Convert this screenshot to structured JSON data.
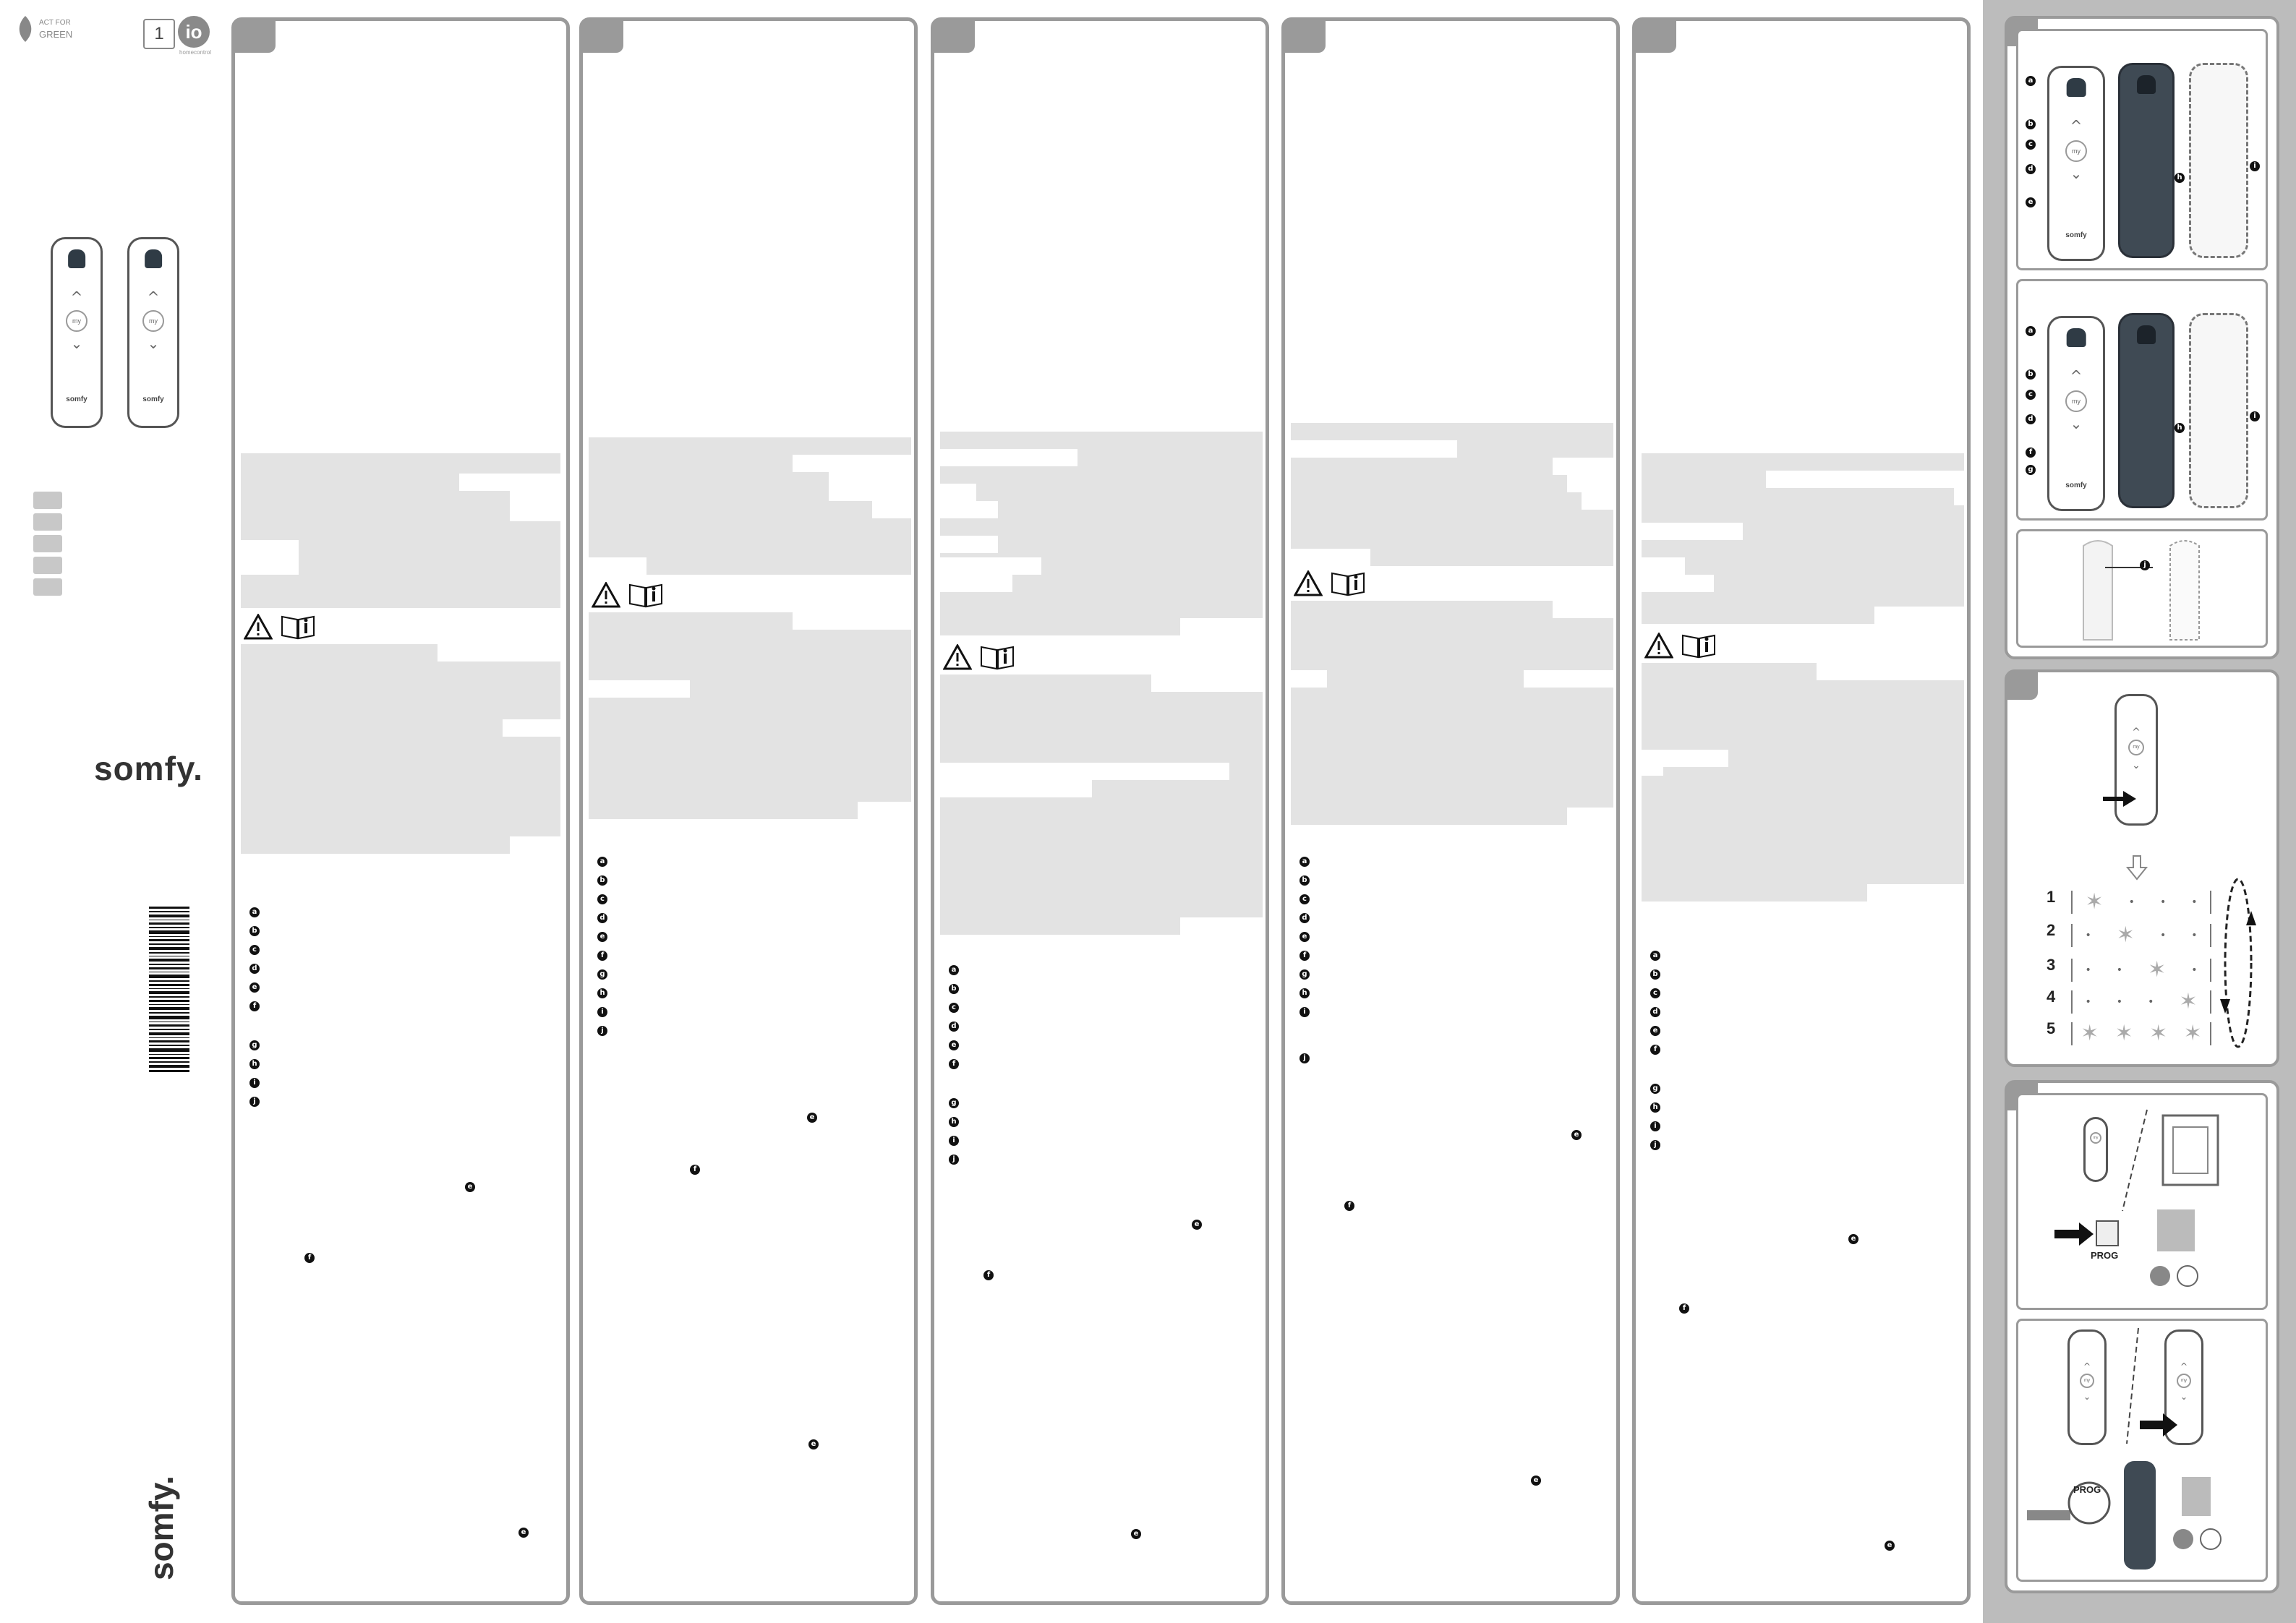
{
  "cover": {
    "eco_label_top": "ACT FOR",
    "eco_label_bottom": "GREEN",
    "channel_count": "1",
    "io_badge": "io",
    "io_sub": "homecontrol",
    "brand_horizontal": "somfy.",
    "brand_vertical": "somfy."
  },
  "remote_labels": {
    "my": "my",
    "brand": "somfy",
    "prog": "PROG"
  },
  "callouts": [
    "a",
    "b",
    "c",
    "d",
    "e",
    "f",
    "g",
    "h",
    "i",
    "j"
  ],
  "steps": [
    "1",
    "2",
    "3",
    "4",
    "5"
  ],
  "colors": {
    "frame": "#9a9a9a",
    "placeholder_text": "#e3e3e3",
    "sidebar": "#bcbcbc",
    "remote_dark": "#3f4a54"
  },
  "icons": {
    "warning": "warning-triangle-icon",
    "manual": "read-manual-icon"
  }
}
